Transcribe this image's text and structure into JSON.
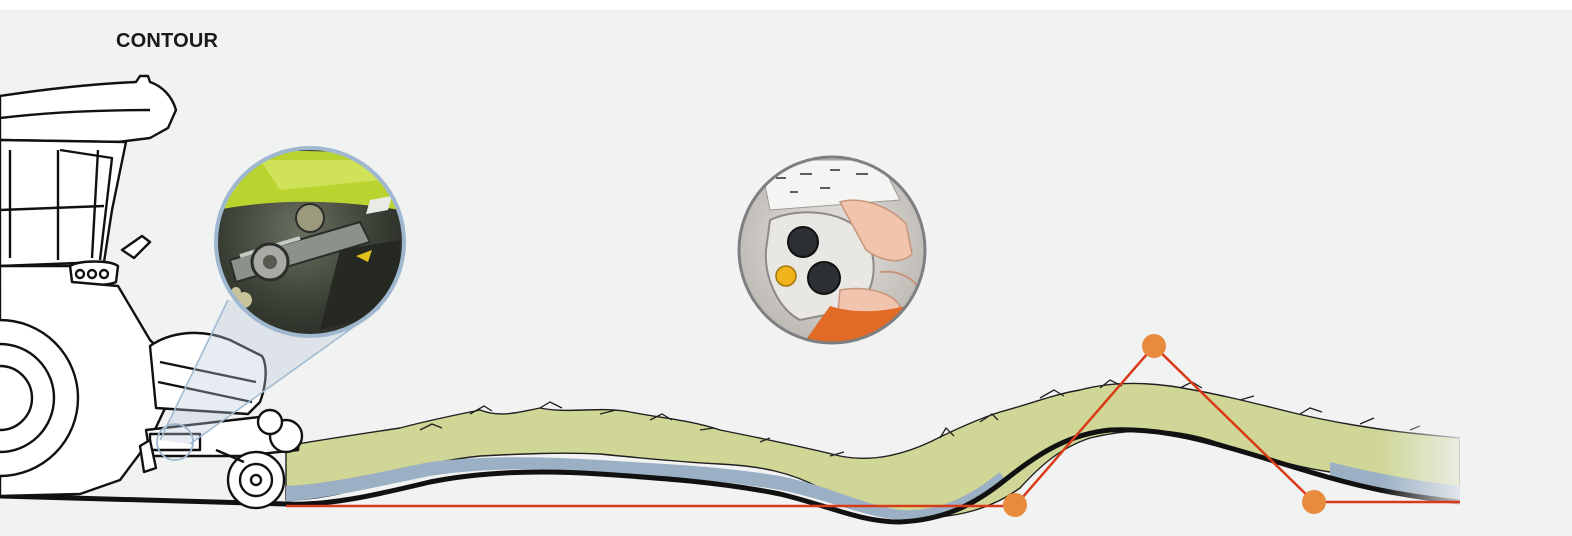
{
  "diagram": {
    "title": "CONTOUR"
  },
  "colors": {
    "background": "#f1f2f2",
    "crop": "#cfd696",
    "ground_layer": "#9bb0c4",
    "ground_line": "#111111",
    "control_line": "#d93a1a",
    "control_point": "#e88b3c",
    "zoom_ring": "#9fb8cf"
  },
  "icons": {
    "machine": "forage-harvester-front-icon",
    "zoom_detail": "hydraulic-cylinder-detail-icon",
    "control": "joystick-hand-icon"
  }
}
